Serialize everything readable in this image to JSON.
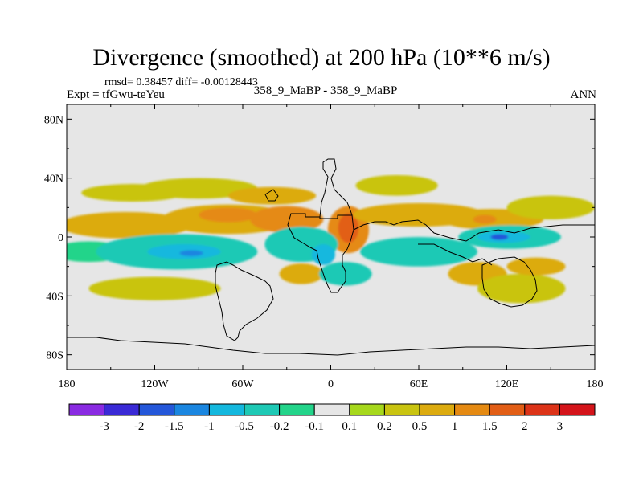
{
  "header": {
    "title": "Divergence (smoothed) at 200 hPa (10**6 m/s)",
    "stats": "rmsd= 0.38457 diff= -0.00128443",
    "experiment": "Expt = tfGwu-teYeu",
    "cases": "358_9_MaBP - 358_9_MaBP",
    "season": "ANN"
  },
  "map": {
    "lat_ticks": [
      "80N",
      "40N",
      "0",
      "40S",
      "80S"
    ],
    "lat_values": [
      80,
      40,
      0,
      -40,
      -80
    ],
    "lon_ticks": [
      "180",
      "120W",
      "60W",
      "0",
      "60E",
      "120E",
      "180"
    ],
    "lon_values": [
      -180,
      -120,
      -60,
      0,
      60,
      120,
      180
    ],
    "lon_range": [
      -180,
      180
    ],
    "lat_range": [
      -90,
      90
    ],
    "background_color": "#e6e6e6",
    "blobs": [
      {
        "lon": -135,
        "lat": 30,
        "rx": 35,
        "ry": 6,
        "level": 0.2
      },
      {
        "lon": -90,
        "lat": 33,
        "rx": 40,
        "ry": 7,
        "level": 0.2
      },
      {
        "lon": -40,
        "lat": 28,
        "rx": 30,
        "ry": 6,
        "level": 0.5
      },
      {
        "lon": -140,
        "lat": 8,
        "rx": 45,
        "ry": 9,
        "level": 0.5
      },
      {
        "lon": -70,
        "lat": 12,
        "rx": 45,
        "ry": 10,
        "level": 0.5
      },
      {
        "lon": -70,
        "lat": 15,
        "rx": 20,
        "ry": 5,
        "level": 1
      },
      {
        "lon": -30,
        "lat": 12,
        "rx": 25,
        "ry": 9,
        "level": 1
      },
      {
        "lon": 12,
        "lat": 5,
        "rx": 14,
        "ry": 16,
        "level": 1
      },
      {
        "lon": 12,
        "lat": 6,
        "rx": 7,
        "ry": 10,
        "level": 1.5
      },
      {
        "lon": 45,
        "lat": 35,
        "rx": 28,
        "ry": 7,
        "level": 0.2
      },
      {
        "lon": 60,
        "lat": 15,
        "rx": 45,
        "ry": 8,
        "level": 0.5
      },
      {
        "lon": 110,
        "lat": 12,
        "rx": 35,
        "ry": 7,
        "level": 0.5
      },
      {
        "lon": 105,
        "lat": 12,
        "rx": 8,
        "ry": 3,
        "level": 1
      },
      {
        "lon": 150,
        "lat": 20,
        "rx": 30,
        "ry": 8,
        "level": 0.2
      },
      {
        "lon": -165,
        "lat": -10,
        "rx": 25,
        "ry": 7,
        "level": -0.2
      },
      {
        "lon": -105,
        "lat": -10,
        "rx": 55,
        "ry": 12,
        "level": -0.5
      },
      {
        "lon": -100,
        "lat": -10,
        "rx": 25,
        "ry": 5,
        "level": -1
      },
      {
        "lon": -95,
        "lat": -11,
        "rx": 8,
        "ry": 2,
        "level": -1.5
      },
      {
        "lon": -20,
        "lat": -5,
        "rx": 25,
        "ry": 12,
        "level": -0.5
      },
      {
        "lon": -5,
        "lat": -12,
        "rx": 8,
        "ry": 7,
        "level": -1
      },
      {
        "lon": 60,
        "lat": -10,
        "rx": 40,
        "ry": 10,
        "level": -0.5
      },
      {
        "lon": 122,
        "lat": 0,
        "rx": 35,
        "ry": 8,
        "level": -0.5
      },
      {
        "lon": 118,
        "lat": 0,
        "rx": 18,
        "ry": 4,
        "level": -1
      },
      {
        "lon": 115,
        "lat": 0,
        "rx": 6,
        "ry": 2,
        "level": -2
      },
      {
        "lon": -120,
        "lat": -35,
        "rx": 45,
        "ry": 8,
        "level": 0.2
      },
      {
        "lon": -20,
        "lat": -25,
        "rx": 15,
        "ry": 7,
        "level": 0.5
      },
      {
        "lon": 10,
        "lat": -25,
        "rx": 18,
        "ry": 8,
        "level": -0.5
      },
      {
        "lon": 100,
        "lat": -25,
        "rx": 20,
        "ry": 8,
        "level": 0.5
      },
      {
        "lon": 130,
        "lat": -35,
        "rx": 30,
        "ry": 10,
        "level": 0.2
      },
      {
        "lon": 140,
        "lat": -20,
        "rx": 20,
        "ry": 6,
        "level": 0.5
      }
    ]
  },
  "colorbar": {
    "labels": [
      "-3",
      "-2",
      "-1.5",
      "-1",
      "-0.5",
      "-0.2",
      "-0.1",
      "0.1",
      "0.2",
      "0.5",
      "1",
      "1.5",
      "2",
      "3"
    ],
    "colors": [
      "#8a2be2",
      "#3a2ad6",
      "#2457d9",
      "#1a86e0",
      "#14b8de",
      "#1ec9b5",
      "#23d48a",
      "#e6e6e6",
      "#a6d81c",
      "#c9c410",
      "#dcab0f",
      "#e58a12",
      "#e25e16",
      "#dc3318",
      "#d4141a"
    ]
  }
}
